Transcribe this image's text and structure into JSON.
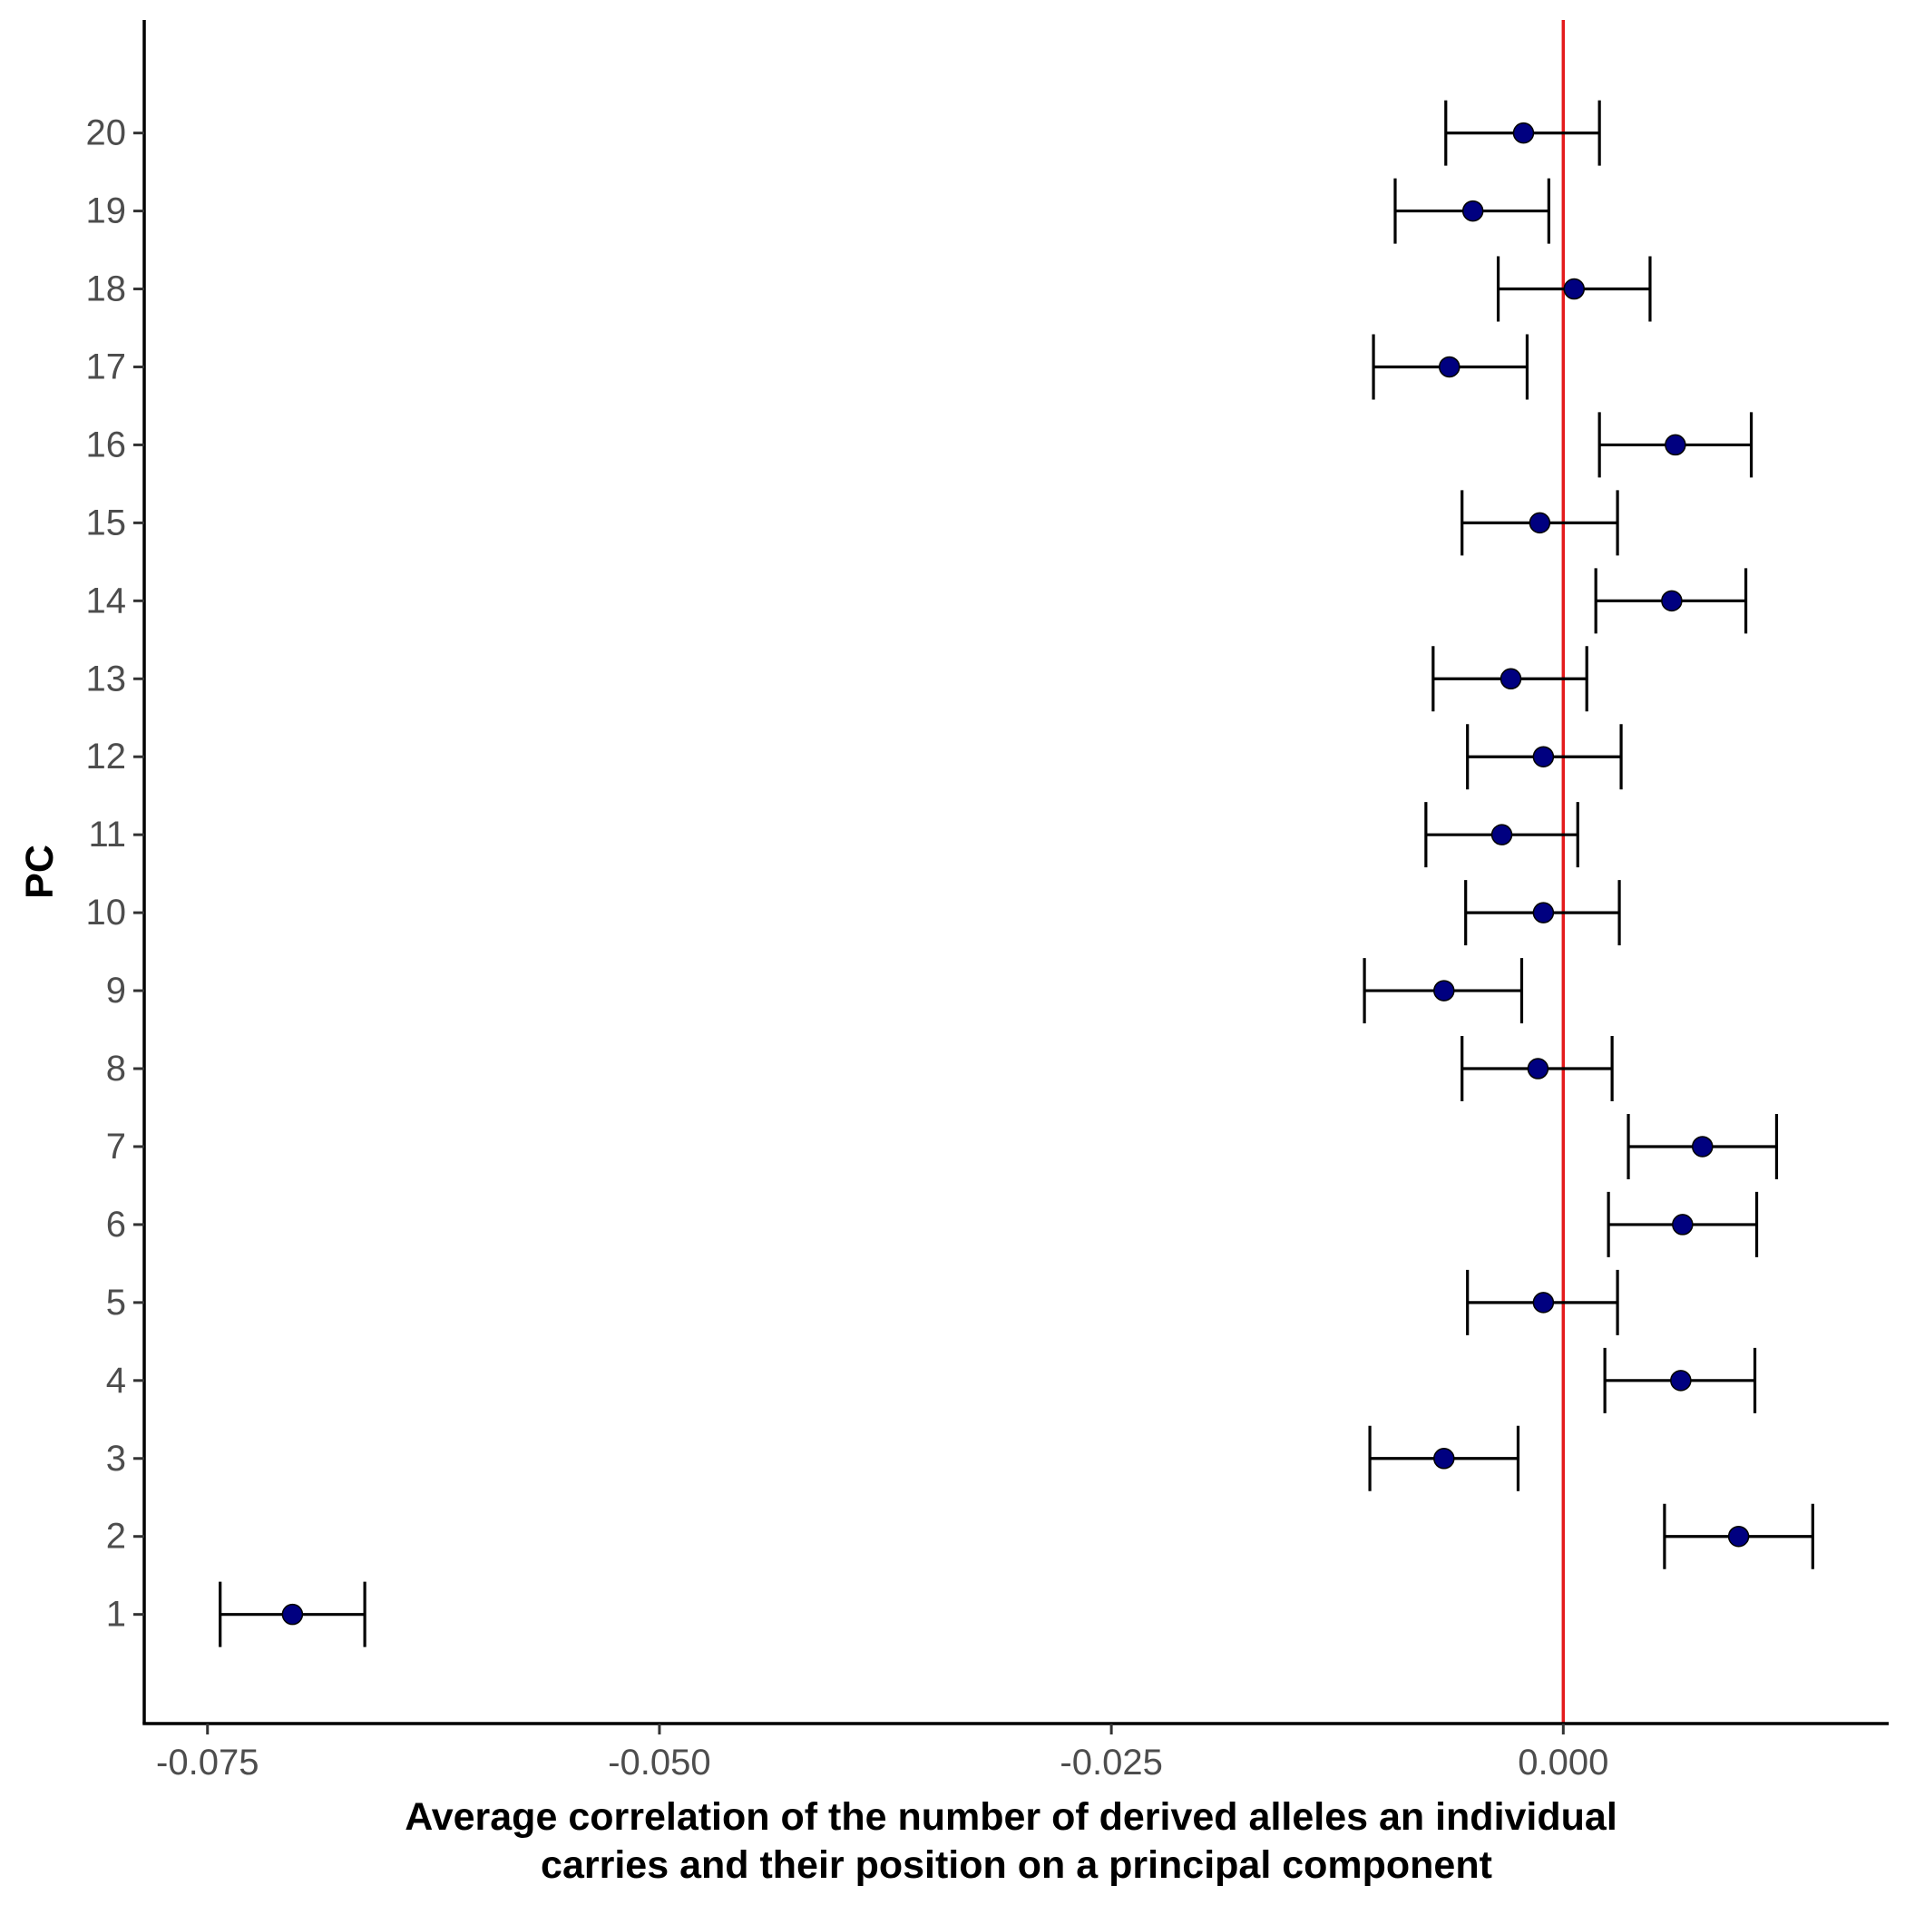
{
  "chart_data": {
    "type": "errorbar",
    "title": "",
    "xlabel_lines": [
      "Average correlation of the number of derived alleles an individual",
      "carries and their position on a principal component"
    ],
    "ylabel": "PC",
    "xlim": [
      -0.0785,
      0.018
    ],
    "ylim": [
      -0.4,
      21.45
    ],
    "x_ticks": [
      {
        "value": -0.075,
        "label": "-0.075"
      },
      {
        "value": -0.05,
        "label": "-0.050"
      },
      {
        "value": -0.025,
        "label": "-0.025"
      },
      {
        "value": 0.0,
        "label": "0.000"
      }
    ],
    "reference_line": {
      "x": 0.0,
      "color": "#e41a1c"
    },
    "point_color": "#000080",
    "errorbar_color": "#000000",
    "points": [
      {
        "pc": 1,
        "label": "1",
        "mean": -0.0703,
        "lower": -0.0743,
        "upper": -0.0663
      },
      {
        "pc": 2,
        "label": "2",
        "mean": 0.0097,
        "lower": 0.0056,
        "upper": 0.0138
      },
      {
        "pc": 3,
        "label": "3",
        "mean": -0.0066,
        "lower": -0.0107,
        "upper": -0.0025
      },
      {
        "pc": 4,
        "label": "4",
        "mean": 0.0065,
        "lower": 0.0023,
        "upper": 0.0106
      },
      {
        "pc": 5,
        "label": "5",
        "mean": -0.0011,
        "lower": -0.0053,
        "upper": 0.003
      },
      {
        "pc": 6,
        "label": "6",
        "mean": 0.0066,
        "lower": 0.0025,
        "upper": 0.0107
      },
      {
        "pc": 7,
        "label": "7",
        "mean": 0.0077,
        "lower": 0.0036,
        "upper": 0.0118
      },
      {
        "pc": 8,
        "label": "8",
        "mean": -0.0014,
        "lower": -0.0056,
        "upper": 0.0027
      },
      {
        "pc": 9,
        "label": "9",
        "mean": -0.0066,
        "lower": -0.011,
        "upper": -0.0023
      },
      {
        "pc": 10,
        "label": "10",
        "mean": -0.0011,
        "lower": -0.0054,
        "upper": 0.0031
      },
      {
        "pc": 11,
        "label": "11",
        "mean": -0.0034,
        "lower": -0.0076,
        "upper": 0.0008
      },
      {
        "pc": 12,
        "label": "12",
        "mean": -0.0011,
        "lower": -0.0053,
        "upper": 0.0032
      },
      {
        "pc": 13,
        "label": "13",
        "mean": -0.0029,
        "lower": -0.0072,
        "upper": 0.0013
      },
      {
        "pc": 14,
        "label": "14",
        "mean": 0.006,
        "lower": 0.0018,
        "upper": 0.0101
      },
      {
        "pc": 15,
        "label": "15",
        "mean": -0.0013,
        "lower": -0.0056,
        "upper": 0.003
      },
      {
        "pc": 16,
        "label": "16",
        "mean": 0.0062,
        "lower": 0.002,
        "upper": 0.0104
      },
      {
        "pc": 17,
        "label": "17",
        "mean": -0.0063,
        "lower": -0.0105,
        "upper": -0.002
      },
      {
        "pc": 18,
        "label": "18",
        "mean": 0.0006,
        "lower": -0.0036,
        "upper": 0.0048
      },
      {
        "pc": 19,
        "label": "19",
        "mean": -0.005,
        "lower": -0.0093,
        "upper": -0.0008
      },
      {
        "pc": 20,
        "label": "20",
        "mean": -0.0022,
        "lower": -0.0065,
        "upper": 0.002
      }
    ]
  }
}
